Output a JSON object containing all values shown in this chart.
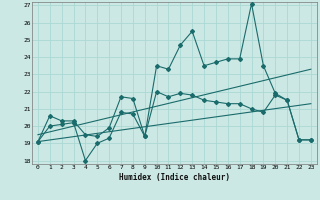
{
  "xlabel": "Humidex (Indice chaleur)",
  "bg_color": "#cce8e4",
  "grid_color": "#aad8d4",
  "line_color": "#1a6b6b",
  "xlim": [
    -0.5,
    23.5
  ],
  "ylim": [
    17.8,
    27.2
  ],
  "yticks": [
    18,
    19,
    20,
    21,
    22,
    23,
    24,
    25,
    26,
    27
  ],
  "xticks": [
    0,
    1,
    2,
    3,
    4,
    5,
    6,
    7,
    8,
    9,
    10,
    11,
    12,
    13,
    14,
    15,
    16,
    17,
    18,
    19,
    20,
    21,
    22,
    23
  ],
  "line1_x": [
    0,
    1,
    2,
    3,
    4,
    5,
    6,
    7,
    8,
    9,
    10,
    11,
    12,
    13,
    14,
    15,
    16,
    17,
    18,
    19,
    20,
    21,
    22,
    23
  ],
  "line1_y": [
    19.1,
    20.6,
    20.3,
    20.3,
    19.5,
    19.4,
    19.9,
    21.7,
    21.6,
    19.4,
    23.5,
    23.3,
    24.7,
    25.5,
    23.5,
    23.7,
    23.9,
    23.9,
    27.1,
    23.5,
    21.9,
    21.5,
    19.2,
    19.2
  ],
  "line2_x": [
    0,
    1,
    2,
    3,
    4,
    5,
    6,
    7,
    8,
    9,
    10,
    11,
    12,
    13,
    14,
    15,
    16,
    17,
    18,
    19,
    20,
    21,
    22,
    23
  ],
  "line2_y": [
    19.1,
    20.0,
    20.1,
    20.2,
    18.0,
    19.0,
    19.3,
    20.8,
    20.7,
    19.4,
    22.0,
    21.7,
    21.9,
    21.8,
    21.5,
    21.4,
    21.3,
    21.3,
    21.0,
    20.8,
    21.8,
    21.5,
    19.2,
    19.2
  ],
  "line3_x": [
    0,
    23
  ],
  "line3_y": [
    19.5,
    23.3
  ],
  "line4_x": [
    0,
    23
  ],
  "line4_y": [
    19.1,
    21.3
  ]
}
